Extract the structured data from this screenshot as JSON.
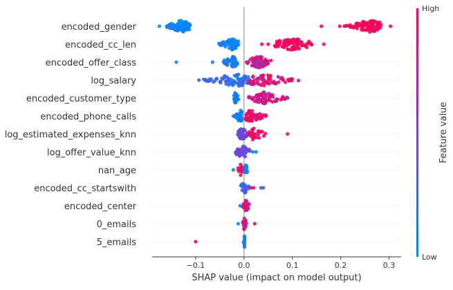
{
  "chart_data": {
    "type": "scatter",
    "subtype": "shap-beeswarm",
    "xlabel": "SHAP value (impact on model output)",
    "xlim": [
      -0.19,
      0.325
    ],
    "xticks": [
      -0.1,
      0.0,
      0.1,
      0.2,
      0.3
    ],
    "xtick_labels": [
      "−0.1",
      "0.0",
      "0.1",
      "0.2",
      "0.3"
    ],
    "colorbar": {
      "label": "Feature value",
      "high_label": "High",
      "low_label": "Low",
      "low_color": "#008afb",
      "high_color": "#ff0052"
    },
    "grid": "dotted horizontal rows",
    "features": [
      {
        "name": "encoded_gender",
        "clusters": [
          {
            "min": -0.165,
            "max": -0.105,
            "n": 90,
            "v": 0.0,
            "peak": -0.13
          },
          {
            "min": 0.205,
            "max": 0.295,
            "n": 95,
            "v": 1.0,
            "peak": 0.26
          }
        ],
        "points": [
          [
            -0.16,
            0.05
          ],
          [
            -0.175,
            0.0
          ],
          [
            0.16,
            1.0
          ],
          [
            0.303,
            1.0
          ],
          [
            0.198,
            1.0
          ]
        ]
      },
      {
        "name": "encoded_cc_len",
        "clusters": [
          {
            "min": -0.055,
            "max": -0.01,
            "n": 70,
            "v": 0.0,
            "peak": -0.025
          },
          {
            "min": 0.055,
            "max": 0.16,
            "n": 85,
            "v": 1.0,
            "peak": 0.1
          }
        ],
        "points": [
          [
            0.05,
            1.0
          ],
          [
            0.037,
            1.0
          ],
          [
            0.165,
            0.95
          ]
        ]
      },
      {
        "name": "encoded_offer_class",
        "clusters": [
          {
            "min": -0.05,
            "max": -0.01,
            "n": 55,
            "v": 0.1,
            "peak": -0.025
          },
          {
            "min": 0.0,
            "max": 0.06,
            "n": 70,
            "v": 0.75,
            "peak": 0.03
          }
        ],
        "points": [
          [
            -0.14,
            0.0
          ],
          [
            -0.065,
            0.1
          ]
        ]
      },
      {
        "name": "log_salary",
        "clusters": [
          {
            "min": -0.105,
            "max": 0.02,
            "n": 80,
            "v": 0.2,
            "peak": -0.015
          },
          {
            "min": 0.0,
            "max": 0.12,
            "n": 60,
            "v": 0.85,
            "peak": 0.04
          }
        ],
        "points": []
      },
      {
        "name": "encoded_customer_type",
        "clusters": [
          {
            "min": -0.025,
            "max": -0.01,
            "n": 30,
            "v": 0.05,
            "peak": -0.018
          },
          {
            "min": 0.005,
            "max": 0.095,
            "n": 75,
            "v": 0.8,
            "peak": 0.04
          }
        ],
        "points": []
      },
      {
        "name": "encoded_phone_calls",
        "clusters": [
          {
            "min": -0.025,
            "max": -0.003,
            "n": 30,
            "v": 0.05,
            "peak": -0.008
          },
          {
            "min": 0.0,
            "max": 0.055,
            "n": 55,
            "v": 0.95,
            "peak": 0.015
          }
        ],
        "points": []
      },
      {
        "name": "log_estimated_expenses_knn",
        "clusters": [
          {
            "min": -0.015,
            "max": 0.01,
            "n": 50,
            "v": 0.45,
            "peak": -0.004
          },
          {
            "min": 0.01,
            "max": 0.06,
            "n": 30,
            "v": 0.95,
            "peak": 0.02
          }
        ],
        "points": [
          [
            0.09,
            1.0
          ]
        ]
      },
      {
        "name": "log_offer_value_knn",
        "clusters": [
          {
            "min": -0.022,
            "max": 0.015,
            "n": 55,
            "v": 0.4,
            "peak": -0.002
          }
        ],
        "points": [
          [
            0.025,
            0.05
          ],
          [
            0.018,
            0.1
          ]
        ]
      },
      {
        "name": "nan_age",
        "clusters": [
          {
            "min": -0.015,
            "max": 0.0,
            "n": 14,
            "v": 0.9,
            "peak": -0.007
          },
          {
            "min": 0.0,
            "max": 0.008,
            "n": 18,
            "v": 0.05,
            "peak": 0.004
          }
        ],
        "points": [
          [
            -0.022,
            0.1
          ]
        ]
      },
      {
        "name": "encoded_cc_startswith",
        "clusters": [
          {
            "min": -0.008,
            "max": 0.012,
            "n": 28,
            "v": 0.3,
            "peak": 0.001
          }
        ],
        "points": [
          [
            0.035,
            0.3
          ],
          [
            0.04,
            0.35
          ],
          [
            0.015,
            1.0
          ],
          [
            0.02,
            0.95
          ]
        ]
      },
      {
        "name": "encoded_center",
        "clusters": [
          {
            "min": -0.005,
            "max": 0.012,
            "n": 30,
            "v": 0.8,
            "peak": 0.004
          }
        ],
        "points": [
          [
            -0.008,
            0.05
          ]
        ]
      },
      {
        "name": "0_emails",
        "clusters": [
          {
            "min": -0.003,
            "max": 0.006,
            "n": 22,
            "v": 0.85,
            "peak": 0.001
          }
        ],
        "points": [
          [
            -0.012,
            0.05
          ],
          [
            0.022,
            1.0
          ]
        ]
      },
      {
        "name": "5_emails",
        "clusters": [
          {
            "min": -0.001,
            "max": 0.004,
            "n": 16,
            "v": 0.05,
            "peak": 0.001
          }
        ],
        "points": [
          [
            -0.1,
            1.0
          ]
        ]
      }
    ]
  }
}
